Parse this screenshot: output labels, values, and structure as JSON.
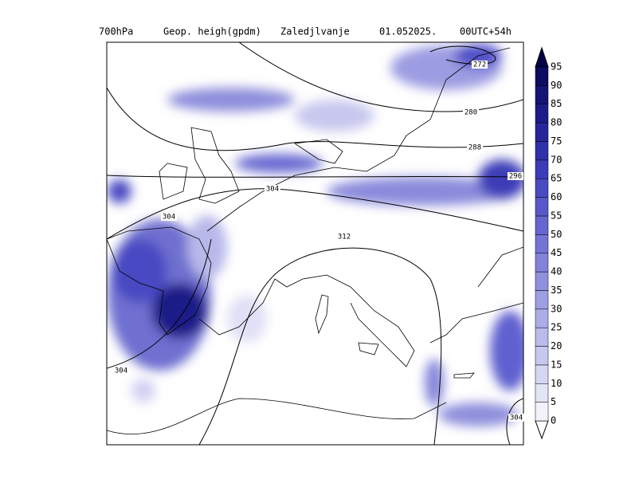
{
  "header": {
    "level": "700hPa",
    "field": "Geop. heigh(gpdm)",
    "place": "Zaledjlvanje",
    "date": "01.052025.",
    "run": "00UTC+54h"
  },
  "contour_labels": [
    272,
    280,
    288,
    296,
    304,
    304,
    312,
    304,
    304
  ],
  "colorbar": {
    "ticks": [
      0,
      5,
      10,
      15,
      20,
      25,
      30,
      35,
      40,
      45,
      50,
      55,
      60,
      65,
      70,
      75,
      80,
      85,
      90,
      95
    ],
    "colors": [
      "#ffffff",
      "#f2f2fb",
      "#e4e4f7",
      "#d6d6f3",
      "#c8c8ef",
      "#babaeb",
      "#acace7",
      "#9e9ee3",
      "#9090df",
      "#8282db",
      "#7474d6",
      "#6666d1",
      "#5858cb",
      "#4a4ac3",
      "#3c3cb8",
      "#3030aa",
      "#26269a",
      "#1c1c88",
      "#141476",
      "#0c0c62",
      "#040448"
    ]
  }
}
